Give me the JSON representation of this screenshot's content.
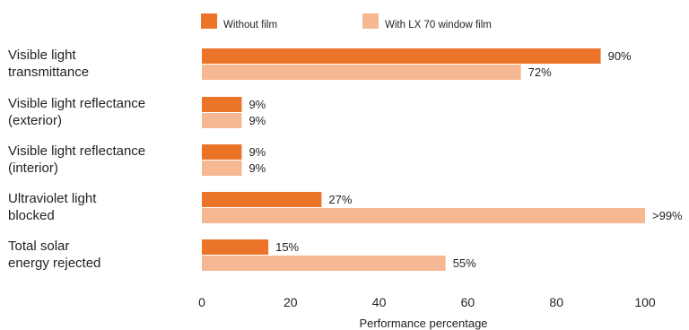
{
  "chart_data": {
    "type": "bar",
    "orientation": "horizontal",
    "categories": [
      [
        "Visible light",
        "transmittance"
      ],
      [
        "Visible light reflectance",
        "(exterior)"
      ],
      [
        "Visible light reflectance",
        "(interior)"
      ],
      [
        "Ultraviolet light",
        "blocked"
      ],
      [
        "Total solar",
        "energy rejected"
      ]
    ],
    "series": [
      {
        "name": "Without film",
        "color": "#ec7429",
        "values": [
          90,
          9,
          9,
          27,
          15
        ],
        "labels": [
          "90%",
          "9%",
          "9%",
          "27%",
          "15%"
        ]
      },
      {
        "name": "With LX 70 window film",
        "color": "#f6b793",
        "values": [
          72,
          9,
          9,
          100,
          55
        ],
        "labels": [
          "72%",
          "9%",
          "9%",
          ">99%",
          "55%"
        ]
      }
    ],
    "xlabel": "Performance percentage",
    "xlim": [
      0,
      100
    ],
    "xticks": [
      0,
      20,
      40,
      60,
      80,
      100
    ],
    "grid": false,
    "legend_position": "top"
  }
}
